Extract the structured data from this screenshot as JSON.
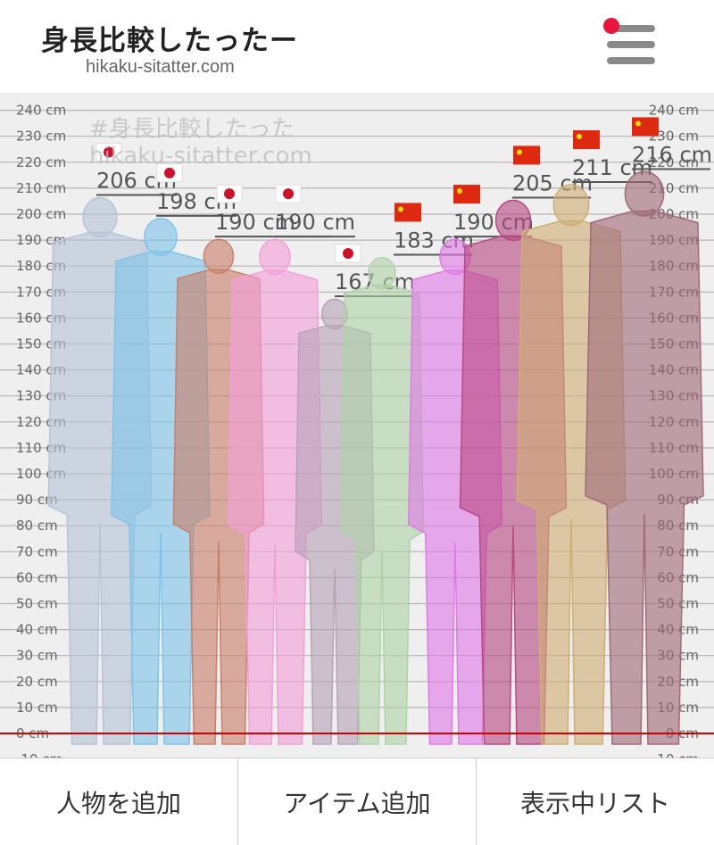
{
  "header": {
    "title": "身長比較したったー",
    "subtitle": "hikaku-sitatter.com"
  },
  "chart": {
    "watermark_line1": "#身長比較したった",
    "watermark_line2": "hikaku-sitatter.com",
    "axis_min": -10,
    "axis_max": 240,
    "tick_step": 10,
    "unit": "cm",
    "zero_line_color": "#cc0000",
    "people": [
      {
        "height": 206,
        "label": "206 cm",
        "flag": "jp",
        "color": "#b6c4d6"
      },
      {
        "height": 198,
        "label": "198 cm",
        "flag": "jp",
        "color": "#7ec4ea"
      },
      {
        "height": 190,
        "label": "190 cm",
        "flag": "jp",
        "color": "#c9806a"
      },
      {
        "height": 190,
        "label": "190 cm",
        "flag": "jp",
        "color": "#f2a0d8"
      },
      {
        "height": 167,
        "label": "167 cm",
        "flag": "jp",
        "color": "#b7a3b7"
      },
      {
        "height": 183,
        "label": "183 cm",
        "flag": "cn",
        "color": "#aed3a8"
      },
      {
        "height": 190,
        "label": "190 cm",
        "flag": "cn",
        "color": "#e07be6"
      },
      {
        "height": 205,
        "label": "205 cm",
        "flag": "cn",
        "color": "#b84a82"
      },
      {
        "height": 211,
        "label": "211 cm",
        "flag": "cn",
        "color": "#cfae74"
      },
      {
        "height": 216,
        "label": "216 cm",
        "flag": "cn",
        "color": "#a06a7a"
      }
    ]
  },
  "bottombar": {
    "add_person": "人物を追加",
    "add_item": "アイテム追加",
    "list": "表示中リスト"
  }
}
